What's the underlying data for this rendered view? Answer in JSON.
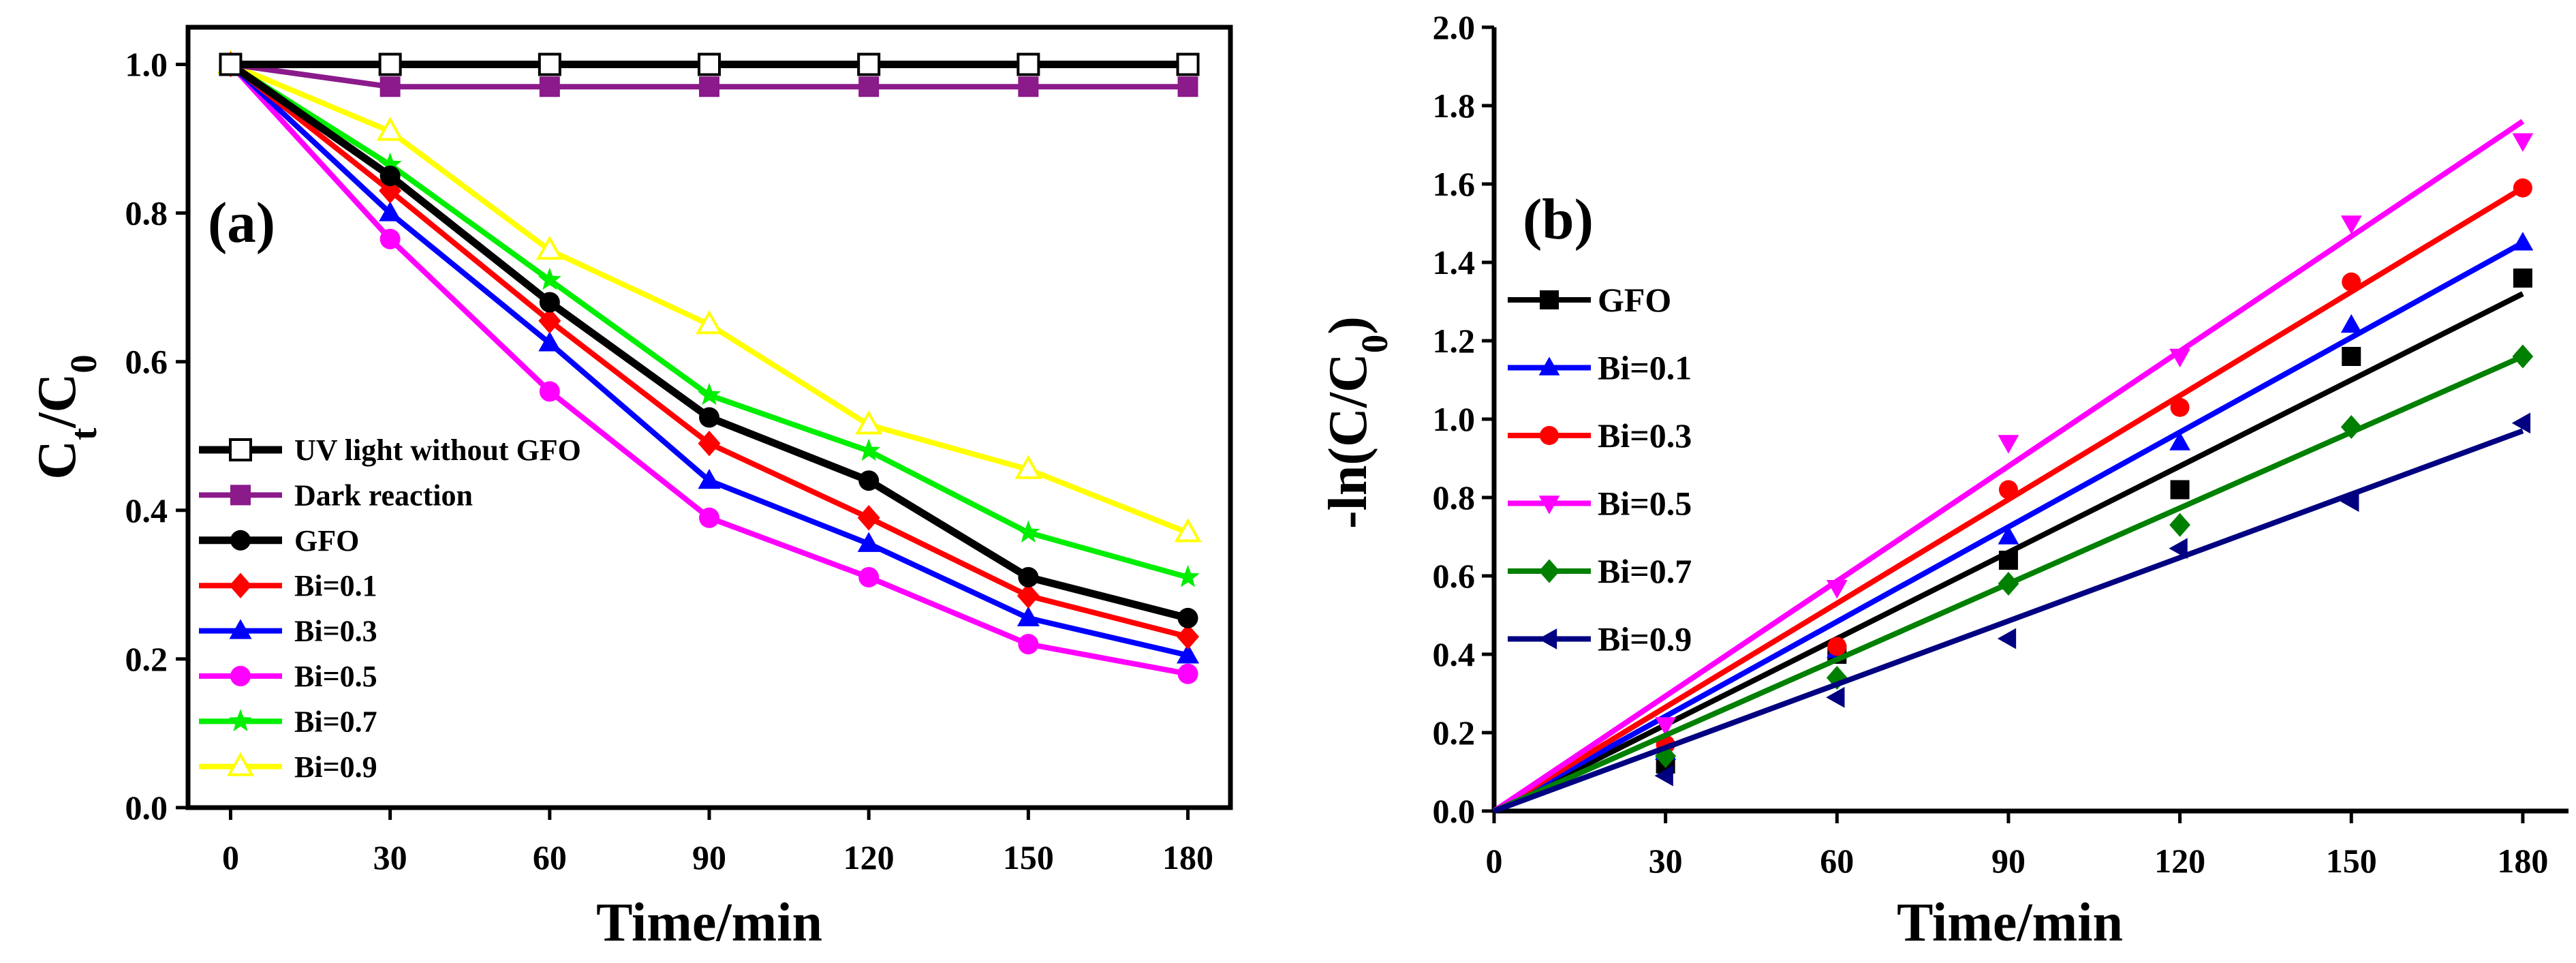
{
  "chart_data": [
    {
      "type": "line",
      "panel_label": "(a)",
      "xlabel": "Time/min",
      "ylabel_main": "C",
      "ylabel_sub1": "t",
      "ylabel_mid": "/C",
      "ylabel_sub2": "0",
      "xlim": [
        -8,
        188
      ],
      "ylim": [
        0,
        1.05
      ],
      "xticks": [
        0,
        30,
        60,
        90,
        120,
        150,
        180
      ],
      "xtick_labels": [
        "0",
        "30",
        "60",
        "90",
        "120",
        "150",
        "180"
      ],
      "yticks": [
        0.0,
        0.2,
        0.4,
        0.6,
        0.8,
        1.0
      ],
      "ytick_labels": [
        "0.0",
        "0.2",
        "0.4",
        "0.6",
        "0.8",
        "1.0"
      ],
      "legend_position": "lower-left",
      "x": [
        0,
        30,
        60,
        90,
        120,
        150,
        180
      ],
      "series": [
        {
          "name": "UV light without GFO",
          "color": "#000000",
          "marker": "square-open",
          "values": [
            1.0,
            1.0,
            1.0,
            1.0,
            1.0,
            1.0,
            1.0
          ]
        },
        {
          "name": "Dark reaction",
          "color": "#8b1a8b",
          "marker": "square",
          "values": [
            1.0,
            0.97,
            0.97,
            0.97,
            0.97,
            0.97,
            0.97
          ]
        },
        {
          "name": "GFO",
          "color": "#000000",
          "marker": "circle",
          "values": [
            1.0,
            0.85,
            0.68,
            0.525,
            0.44,
            0.31,
            0.255
          ]
        },
        {
          "name": "Bi=0.1",
          "color": "#ff0000",
          "marker": "diamond",
          "values": [
            1.0,
            0.83,
            0.655,
            0.49,
            0.39,
            0.285,
            0.23
          ]
        },
        {
          "name": "Bi=0.3",
          "color": "#0000ff",
          "marker": "triangle-up",
          "values": [
            1.0,
            0.8,
            0.625,
            0.44,
            0.355,
            0.255,
            0.205
          ]
        },
        {
          "name": "Bi=0.5",
          "color": "#ff00ff",
          "marker": "circle",
          "values": [
            1.0,
            0.765,
            0.56,
            0.39,
            0.31,
            0.22,
            0.18
          ]
        },
        {
          "name": "Bi=0.7",
          "color": "#00ee00",
          "marker": "star",
          "values": [
            1.0,
            0.865,
            0.71,
            0.555,
            0.48,
            0.37,
            0.31
          ]
        },
        {
          "name": "Bi=0.9",
          "color": "#ffff00",
          "marker": "triangle-up-open",
          "values": [
            1.0,
            0.91,
            0.75,
            0.65,
            0.515,
            0.455,
            0.37
          ]
        }
      ]
    },
    {
      "type": "scatter",
      "panel_label": "(b)",
      "xlabel": "Time/min",
      "ylabel_main": "-ln(C/C",
      "ylabel_sub": "0",
      "ylabel_end": ")",
      "xlim": [
        0,
        188
      ],
      "ylim": [
        0,
        2.0
      ],
      "xticks": [
        0,
        30,
        60,
        90,
        120,
        150,
        180
      ],
      "xtick_labels": [
        "0",
        "30",
        "60",
        "90",
        "120",
        "150",
        "180"
      ],
      "yticks": [
        0.0,
        0.2,
        0.4,
        0.6,
        0.8,
        1.0,
        1.2,
        1.4,
        1.6,
        1.8,
        2.0
      ],
      "ytick_labels": [
        "0.0",
        "0.2",
        "0.4",
        "0.6",
        "0.8",
        "1.0",
        "1.2",
        "1.4",
        "1.6",
        "1.8",
        "2.0"
      ],
      "legend_position": "middle-left",
      "x": [
        0,
        30,
        60,
        90,
        120,
        150,
        180
      ],
      "series": [
        {
          "name": "GFO",
          "color": "#000000",
          "marker": "square",
          "values": [
            0,
            0.12,
            0.4,
            0.64,
            0.82,
            1.16,
            1.36
          ],
          "fit": [
            0,
            1.32
          ]
        },
        {
          "name": "Bi=0.1",
          "color": "#0000ff",
          "marker": "triangle-up",
          "values": [
            0,
            0.15,
            0.41,
            0.7,
            0.94,
            1.24,
            1.45
          ],
          "fit": [
            0,
            1.45
          ]
        },
        {
          "name": "Bi=0.3",
          "color": "#ff0000",
          "marker": "circle",
          "values": [
            0,
            0.17,
            0.42,
            0.82,
            1.03,
            1.35,
            1.59
          ],
          "fit": [
            0,
            1.59
          ]
        },
        {
          "name": "Bi=0.5",
          "color": "#ff00ff",
          "marker": "triangle-down",
          "values": [
            0,
            0.22,
            0.57,
            0.94,
            1.16,
            1.5,
            1.71
          ],
          "fit": [
            0,
            1.76
          ]
        },
        {
          "name": "Bi=0.7",
          "color": "#008000",
          "marker": "diamond",
          "values": [
            0,
            0.14,
            0.34,
            0.58,
            0.73,
            0.98,
            1.16
          ],
          "fit": [
            0,
            1.16
          ]
        },
        {
          "name": "Bi=0.9",
          "color": "#000080",
          "marker": "triangle-left",
          "values": [
            0,
            0.09,
            0.29,
            0.44,
            0.67,
            0.79,
            0.99
          ],
          "fit": [
            0,
            0.97
          ]
        }
      ]
    }
  ]
}
